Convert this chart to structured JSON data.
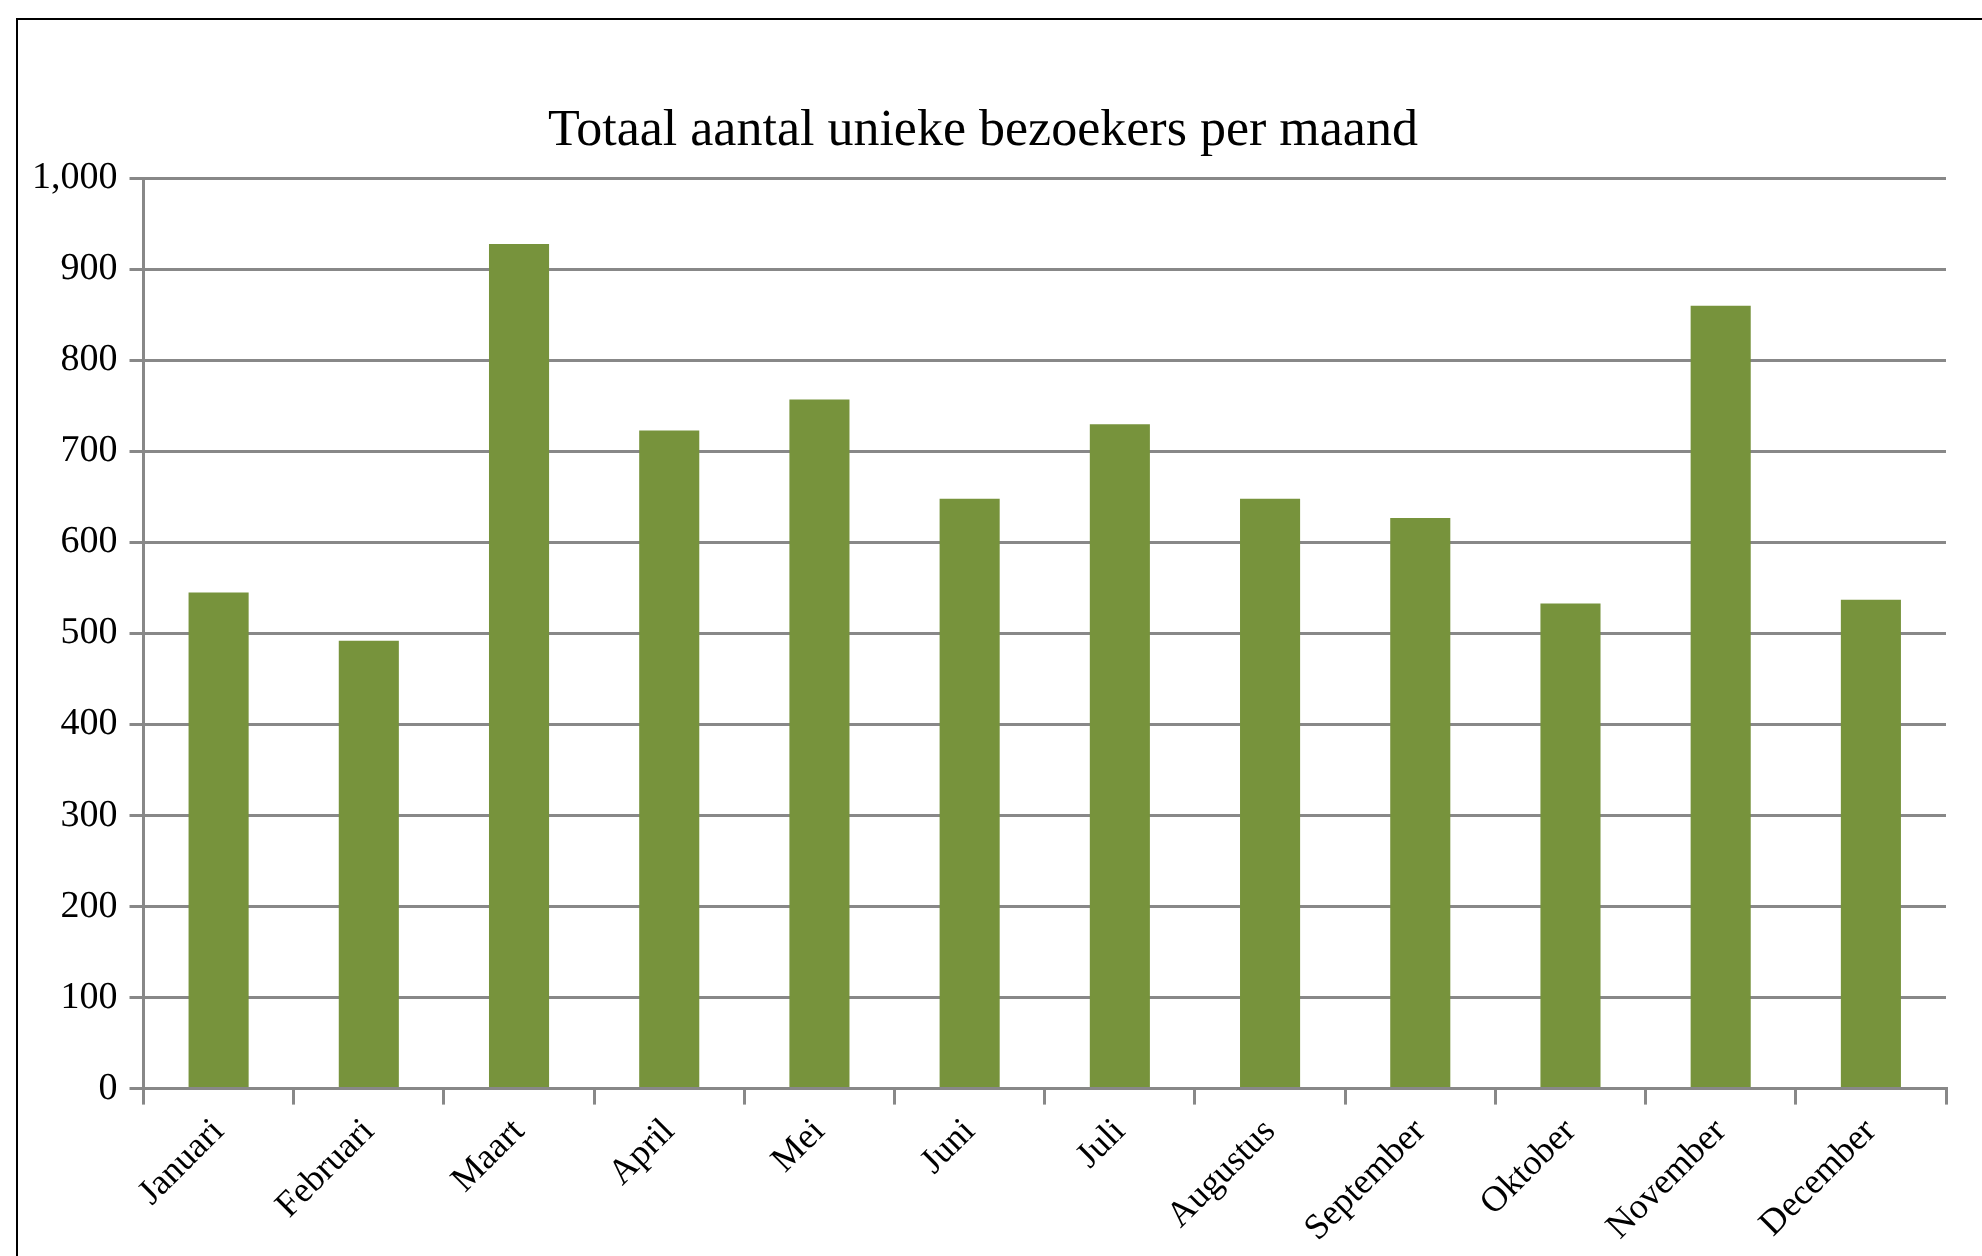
{
  "chart_data": {
    "type": "bar",
    "title": "Totaal aantal unieke bezoekers per maand",
    "categories": [
      "Januari",
      "Februari",
      "Maart",
      "April",
      "Mei",
      "Juni",
      "Juli",
      "Augustus",
      "September",
      "Oktober",
      "November",
      "December"
    ],
    "values": [
      545,
      492,
      928,
      723,
      757,
      648,
      730,
      648,
      627,
      533,
      860,
      537
    ],
    "color": "#77933c",
    "ylim": [
      0,
      1000
    ],
    "yticks": [
      0,
      100,
      200,
      300,
      400,
      500,
      600,
      700,
      800,
      900,
      {
        "value": 1000,
        "label": "1,000"
      }
    ],
    "grid": "y"
  }
}
